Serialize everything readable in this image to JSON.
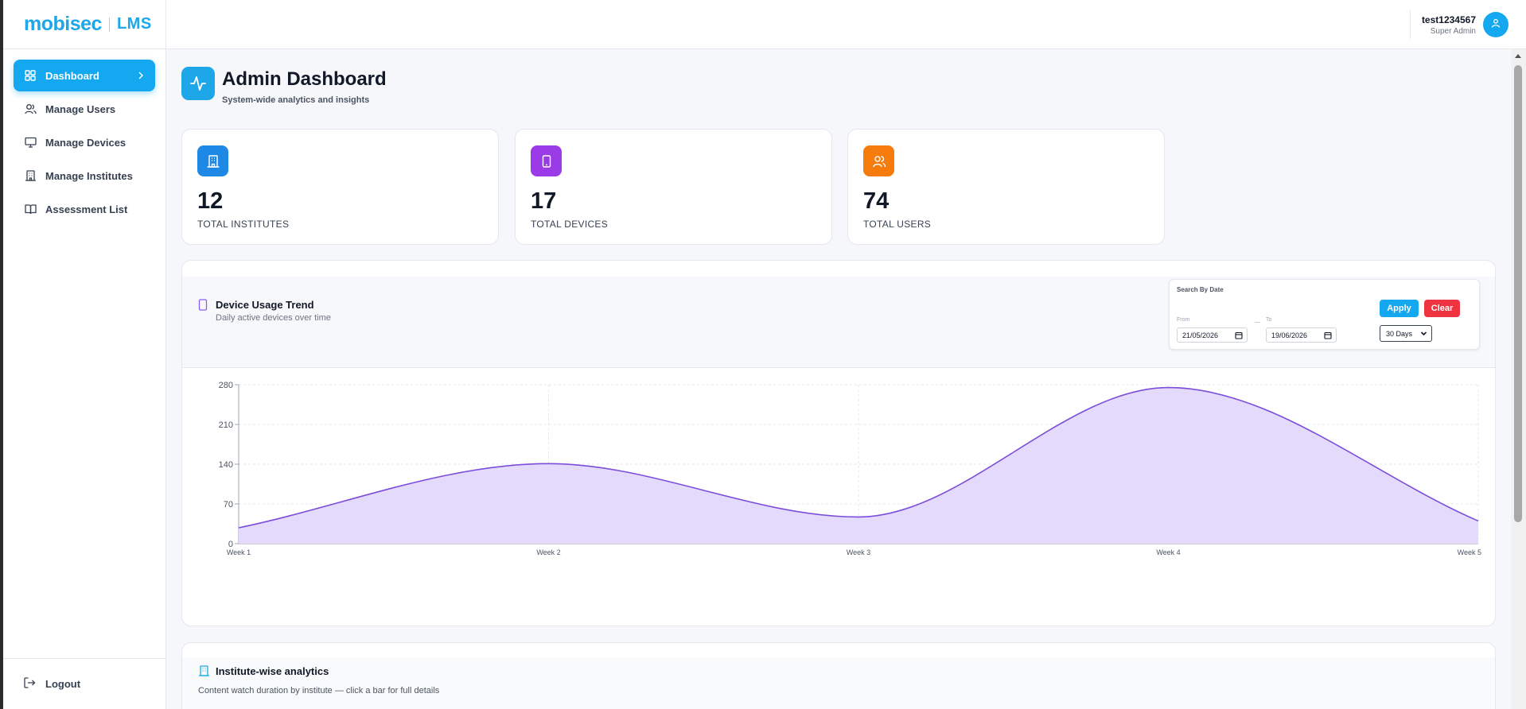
{
  "brand": {
    "logo_main": "mobisec",
    "logo_suffix": "LMS",
    "color": "#1ea7e8"
  },
  "sidebar": {
    "items": [
      {
        "label": "Dashboard",
        "icon": "grid-icon",
        "active": true
      },
      {
        "label": "Manage Users",
        "icon": "users-icon"
      },
      {
        "label": "Manage Devices",
        "icon": "monitor-icon"
      },
      {
        "label": "Manage Institutes",
        "icon": "building-icon"
      },
      {
        "label": "Assessment List",
        "icon": "book-icon"
      }
    ],
    "logout_label": "Logout"
  },
  "header": {
    "user_name": "test1234567",
    "user_role": "Super Admin"
  },
  "page": {
    "title": "Admin Dashboard",
    "subtitle": "System-wide analytics and insights"
  },
  "stats": [
    {
      "value": "12",
      "label": "TOTAL INSTITUTES",
      "color": "#1e88e5",
      "icon": "building-icon"
    },
    {
      "value": "17",
      "label": "TOTAL DEVICES",
      "color": "#9b3be8",
      "icon": "tablet-icon"
    },
    {
      "value": "74",
      "label": "TOTAL USERS",
      "color": "#f57c0c",
      "icon": "users-icon"
    }
  ],
  "trend": {
    "title": "Device Usage Trend",
    "subtitle": "Daily active devices over time",
    "filter": {
      "title": "Search By Date",
      "from_label": "From",
      "to_label": "To",
      "separator": "—",
      "from_value": "21/05/2026",
      "to_value": "19/06/2026",
      "apply_label": "Apply",
      "clear_label": "Clear",
      "range_value": "30 Days"
    }
  },
  "chart_data": {
    "type": "area",
    "categories": [
      "Week 1",
      "Week 2",
      "Week 3",
      "Week 4",
      "Week 5"
    ],
    "values": [
      28,
      141,
      47,
      275,
      40
    ],
    "ylim": [
      0,
      280
    ],
    "yticks": [
      0,
      70,
      140,
      210,
      280
    ],
    "grid": true,
    "color": "#7c4ddb"
  },
  "institutes": {
    "title": "Institute-wise analytics",
    "subtitle": "Content watch duration by institute — click a bar for full details"
  }
}
